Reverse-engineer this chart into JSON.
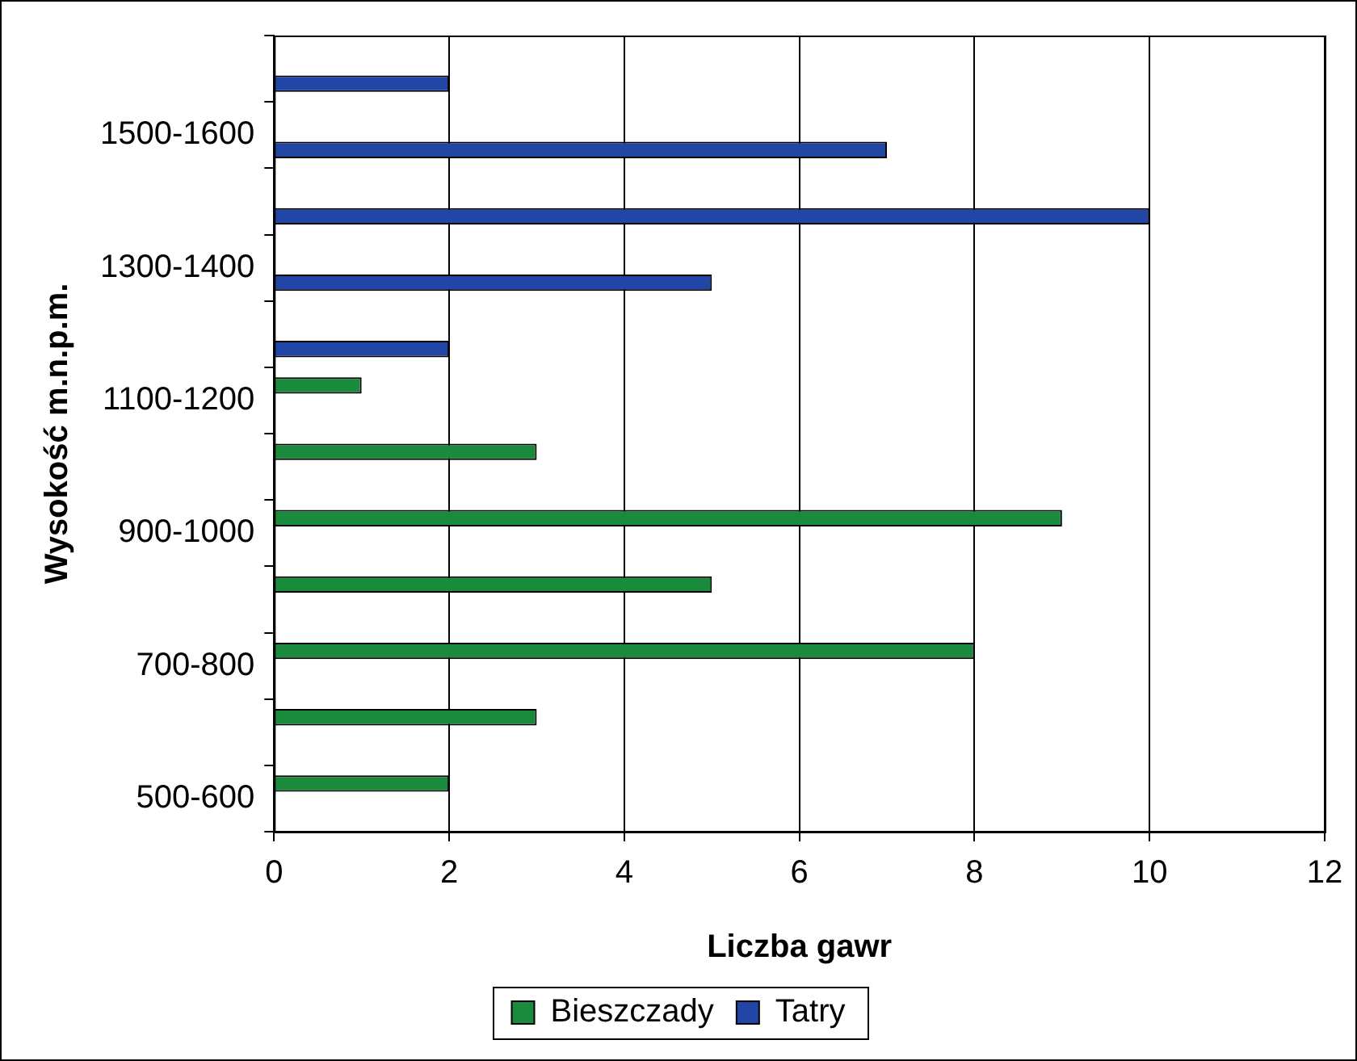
{
  "chart_data": {
    "type": "bar",
    "orientation": "horizontal",
    "xlabel": "Liczba gawr",
    "ylabel": "Wysokość m.n.p.m.",
    "categories": [
      null,
      "1500-1600",
      null,
      "1300-1400",
      null,
      "1100-1200",
      null,
      "900-1000",
      null,
      "700-800",
      null,
      "500-600"
    ],
    "series": [
      {
        "name": "Bieszczady",
        "color": "#1a8a3c",
        "values": [
          null,
          null,
          null,
          null,
          null,
          1,
          3,
          9,
          5,
          8,
          3,
          2
        ]
      },
      {
        "name": "Tatry",
        "color": "#2146a6",
        "values": [
          2,
          7,
          10,
          5,
          2,
          null,
          null,
          null,
          null,
          null,
          null,
          null
        ]
      }
    ],
    "xlim": [
      0,
      12
    ],
    "xticks": [
      0,
      2,
      4,
      6,
      8,
      10,
      12
    ],
    "grid": "x",
    "legend": "bottom"
  }
}
